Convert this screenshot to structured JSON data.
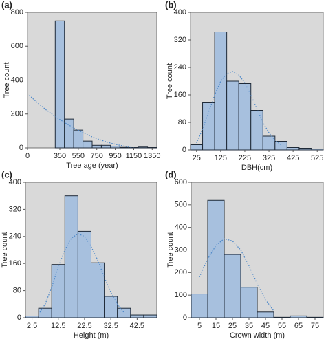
{
  "chart_data": [
    {
      "type": "histogram",
      "panel_label": "(a)",
      "x_label": "Tree age (year)",
      "y_label": "Tree count",
      "bins": [
        300,
        400,
        500,
        600,
        700,
        800,
        900,
        1000,
        1100,
        1200,
        1300,
        1400
      ],
      "values": [
        750,
        170,
        105,
        40,
        15,
        15,
        10,
        3,
        2,
        5,
        2
      ],
      "color": "#a7c0de",
      "edge_color": "#1f2a38",
      "background": "#d9d9d9",
      "xlim": [
        0,
        1400
      ],
      "xticks": [
        0,
        350,
        550,
        750,
        950,
        1150,
        1350
      ],
      "ylim": [
        0,
        800
      ],
      "yticks": [
        0,
        200,
        400,
        600,
        800
      ],
      "fit": {
        "color": "#4a86c8",
        "x": [
          0,
          100,
          200,
          300,
          400,
          500,
          600,
          700,
          800,
          900,
          1000,
          1100,
          1150
        ],
        "values": [
          320,
          270,
          225,
          185,
          150,
          118,
          90,
          65,
          45,
          28,
          15,
          5,
          0
        ]
      }
    },
    {
      "type": "histogram",
      "panel_label": "(b)",
      "x_label": "DBH(cm)",
      "y_label": "Tree count",
      "bins": [
        0,
        50,
        100,
        150,
        200,
        250,
        300,
        350,
        400,
        450,
        500,
        550
      ],
      "values": [
        15,
        137,
        343,
        200,
        193,
        115,
        40,
        25,
        7,
        5,
        3
      ],
      "color": "#a7c0de",
      "edge_color": "#1f2a38",
      "background": "#d9d9d9",
      "xlim": [
        0,
        550
      ],
      "xticks": [
        25,
        125,
        225,
        325,
        425,
        525
      ],
      "ylim": [
        0,
        400
      ],
      "yticks": [
        0,
        80,
        160,
        240,
        320,
        400
      ],
      "fit": {
        "color": "#4a86c8",
        "x": [
          25,
          50,
          75,
          100,
          125,
          150,
          175,
          200,
          225,
          250,
          275,
          300,
          325,
          350,
          375
        ],
        "values": [
          20,
          60,
          110,
          160,
          200,
          222,
          228,
          218,
          195,
          160,
          120,
          80,
          50,
          28,
          15
        ]
      }
    },
    {
      "type": "histogram",
      "panel_label": "(c)",
      "x_label": "Height (m)",
      "y_label": "Tree count",
      "bins": [
        0,
        5,
        10,
        15,
        20,
        25,
        30,
        35,
        40,
        45,
        50
      ],
      "values": [
        5,
        28,
        157,
        360,
        255,
        162,
        63,
        28,
        8,
        8
      ],
      "color": "#a7c0de",
      "edge_color": "#1f2a38",
      "background": "#d9d9d9",
      "xlim": [
        0,
        50
      ],
      "xticks": [
        2.5,
        12.5,
        22.5,
        32.5,
        42.5
      ],
      "ylim": [
        0,
        400
      ],
      "yticks": [
        0,
        80,
        160,
        240,
        320,
        400
      ],
      "fit": {
        "color": "#4a86c8",
        "x": [
          5,
          7.5,
          10,
          12.5,
          15,
          17.5,
          20,
          22.5,
          25,
          27.5,
          30,
          32.5,
          35,
          37.5
        ],
        "values": [
          10,
          40,
          90,
          150,
          200,
          235,
          248,
          240,
          210,
          170,
          120,
          75,
          40,
          15
        ]
      }
    },
    {
      "type": "histogram",
      "panel_label": "(d)",
      "x_label": "Crown width (m)",
      "y_label": "Tree count",
      "bins": [
        0,
        10,
        20,
        30,
        40,
        50,
        60,
        70,
        80
      ],
      "values": [
        105,
        520,
        280,
        135,
        25,
        2,
        8,
        2
      ],
      "color": "#a7c0de",
      "edge_color": "#1f2a38",
      "background": "#d9d9d9",
      "xlim": [
        0,
        80
      ],
      "xticks": [
        5,
        15,
        25,
        35,
        45,
        55,
        65,
        75
      ],
      "ylim": [
        0,
        600
      ],
      "yticks": [
        0,
        100,
        200,
        300,
        400,
        500,
        600
      ],
      "fit": {
        "color": "#4a86c8",
        "x": [
          5,
          10,
          15,
          20,
          25,
          30,
          35,
          40,
          45,
          50
        ],
        "values": [
          180,
          260,
          320,
          350,
          340,
          300,
          230,
          150,
          80,
          30
        ]
      }
    }
  ]
}
